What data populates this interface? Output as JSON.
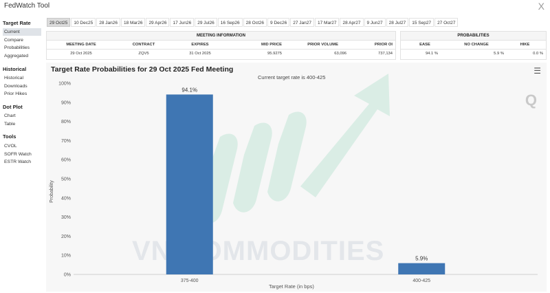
{
  "app": {
    "title": "FedWatch Tool",
    "close_glyph": "X"
  },
  "sidebar": {
    "sections": [
      {
        "heading": "Target Rate",
        "items": [
          "Current",
          "Compare",
          "Probabilities",
          "Aggregated"
        ]
      },
      {
        "heading": "Historical",
        "items": [
          "Historical",
          "Downloads",
          "Prior Hikes"
        ]
      },
      {
        "heading": "Dot Plot",
        "items": [
          "Chart",
          "Table"
        ]
      },
      {
        "heading": "Tools",
        "items": [
          "CVOL",
          "SOFR Watch",
          "ESTR Watch"
        ]
      }
    ],
    "active_item": "Current"
  },
  "tabs": [
    "29 Oct25",
    "10 Dec25",
    "28 Jan26",
    "18 Mar26",
    "29 Apr26",
    "17 Jun26",
    "29 Jul26",
    "16 Sep26",
    "28 Oct26",
    "9 Dec26",
    "27 Jan27",
    "17 Mar27",
    "28 Apr27",
    "9 Jun27",
    "28 Jul27",
    "15 Sep27",
    "27 Oct27"
  ],
  "active_tab": "29 Oct25",
  "meeting_info": {
    "heading": "MEETING INFORMATION",
    "columns": [
      "MEETING DATE",
      "CONTRACT",
      "EXPIRES",
      "MID PRICE",
      "PRIOR VOLUME",
      "PRIOR OI"
    ],
    "values": [
      "29 Oct 2025",
      "ZQV5",
      "31 Oct 2025",
      "95.9275",
      "63,096",
      "737,134"
    ]
  },
  "probabilities": {
    "heading": "PROBABILITIES",
    "columns": [
      "EASE",
      "NO CHANGE",
      "HIKE"
    ],
    "values": [
      "94.1 %",
      "5.9 %",
      "0.0 %"
    ]
  },
  "chart_header": {
    "title": "Target Rate Probabilities for 29 Oct 2025 Fed Meeting",
    "menu_icon": "hamburger-menu-icon",
    "logo": "Q",
    "watermark": "VN COMMODITIES"
  },
  "chart_data": {
    "type": "bar",
    "subtitle": "Current target rate is 400-425",
    "categories": [
      "375-400",
      "400-425"
    ],
    "values": [
      94.1,
      5.9
    ],
    "data_labels": [
      "94.1%",
      "5.9%"
    ],
    "xlabel": "Target Rate (in bps)",
    "ylabel": "Probability",
    "ylim": [
      0,
      100
    ],
    "yticks": [
      "0%",
      "10%",
      "20%",
      "30%",
      "40%",
      "50%",
      "60%",
      "70%",
      "80%",
      "90%",
      "100%"
    ],
    "bar_color": "#3f76b3",
    "grid": false
  }
}
